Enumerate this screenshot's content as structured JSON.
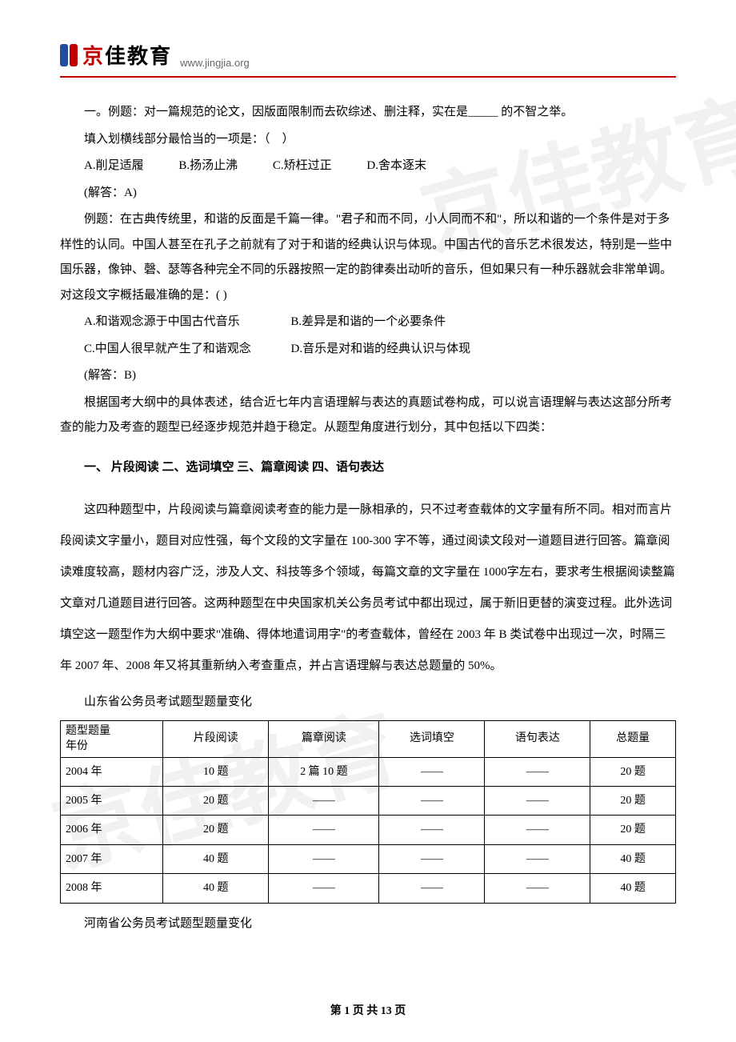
{
  "header": {
    "logo_chars": [
      "京",
      "佳",
      "教",
      "育"
    ],
    "url": "www.jingjia.org"
  },
  "watermark": {
    "text": "京佳教育"
  },
  "body": {
    "q1_intro": "一。例题：对一篇规范的论文，因版面限制而去砍综述、删注释，实在是_____ 的不智之举。",
    "q1_prompt": "填入划横线部分最恰当的一项是：（　）",
    "q1_options": {
      "a": "A.削足适履",
      "b": "B.扬汤止沸",
      "c": "C.矫枉过正",
      "d": "D.舍本逐末"
    },
    "q1_answer": "(解答：A)",
    "q2_text": "例题：在古典传统里，和谐的反面是千篇一律。\"君子和而不同，小人同而不和\"，所以和谐的一个条件是对于多样性的认同。中国人甚至在孔子之前就有了对于和谐的经典认识与体现。中国古代的音乐艺术很发达，特别是一些中国乐器，像钟、磬、瑟等各种完全不同的乐器按照一定的韵律奏出动听的音乐，但如果只有一种乐器就会非常单调。　　对这段文字概括最准确的是：( )",
    "q2_options": {
      "a": "A.和谐观念源于中国古代音乐",
      "b": "B.差异是和谐的一个必要条件",
      "c": "C.中国人很早就产生了和谐观念",
      "d": "D.音乐是对和谐的经典认识与体现"
    },
    "q2_answer": "(解答：B)",
    "analysis": "根据国考大纲中的具体表述，结合近七年内言语理解与表达的真题试卷构成，可以说言语理解与表达这部分所考查的能力及考查的题型已经逐步规范并趋于稳定。从题型角度进行划分，其中包括以下四类：",
    "section_heading": "一、 片段阅读  二、选词填空  三、篇章阅读  四、语句表达",
    "long_para": "这四种题型中，片段阅读与篇章阅读考查的能力是一脉相承的，只不过考查载体的文字量有所不同。相对而言片段阅读文字量小，题目对应性强，每个文段的文字量在 100-300 字不等，通过阅读文段对一道题目进行回答。篇章阅读难度较高，题材内容广泛，涉及人文、科技等多个领域，每篇文章的文字量在 1000字左右，要求考生根据阅读整篇文章对几道题目进行回答。这两种题型在中央国家机关公务员考试中都出现过，属于新旧更替的演变过程。此外选词填空这一题型作为大纲中要求\"准确、得体地遣词用字\"的考查载体，曾经在 2003 年 B 类试卷中出现过一次，时隔三年 2007 年、2008 年又将其重新纳入考查重点，并占言语理解与表达总题量的 50%。",
    "table1_title": "山东省公务员考试题型题量变化",
    "table2_title": "河南省公务员考试题型题量变化"
  },
  "table1": {
    "headers": {
      "col1_line1": "题型题量",
      "col1_line2": "年份",
      "col2": "片段阅读",
      "col3": "篇章阅读",
      "col4": "选词填空",
      "col5": "语句表达",
      "col6": "总题量"
    },
    "rows": [
      {
        "year": "2004 年",
        "c2": "10 题",
        "c3": "2 篇 10 题",
        "c4": "——",
        "c5": "——",
        "c6": "20 题"
      },
      {
        "year": "2005 年",
        "c2": "20 题",
        "c3": "——",
        "c4": "——",
        "c5": "——",
        "c6": "20 题"
      },
      {
        "year": "2006 年",
        "c2": "20 题",
        "c3": "——",
        "c4": "——",
        "c5": "——",
        "c6": "20 题"
      },
      {
        "year": "2007 年",
        "c2": "40 题",
        "c3": "——",
        "c4": "——",
        "c5": "——",
        "c6": "40 题"
      },
      {
        "year": "2008 年",
        "c2": "40 题",
        "c3": "——",
        "c4": "——",
        "c5": "——",
        "c6": "40 题"
      }
    ]
  },
  "footer": {
    "page_label_prefix": "第 ",
    "current_page": "1",
    "page_label_mid": " 页 共 ",
    "total_pages": "13",
    "page_label_suffix": " 页"
  },
  "colors": {
    "accent_red": "#c00000",
    "accent_blue": "#1e4e9c",
    "text": "#000000",
    "url_gray": "#666666",
    "watermark_gray": "rgba(200,200,200,0.25)",
    "border": "#000000"
  }
}
